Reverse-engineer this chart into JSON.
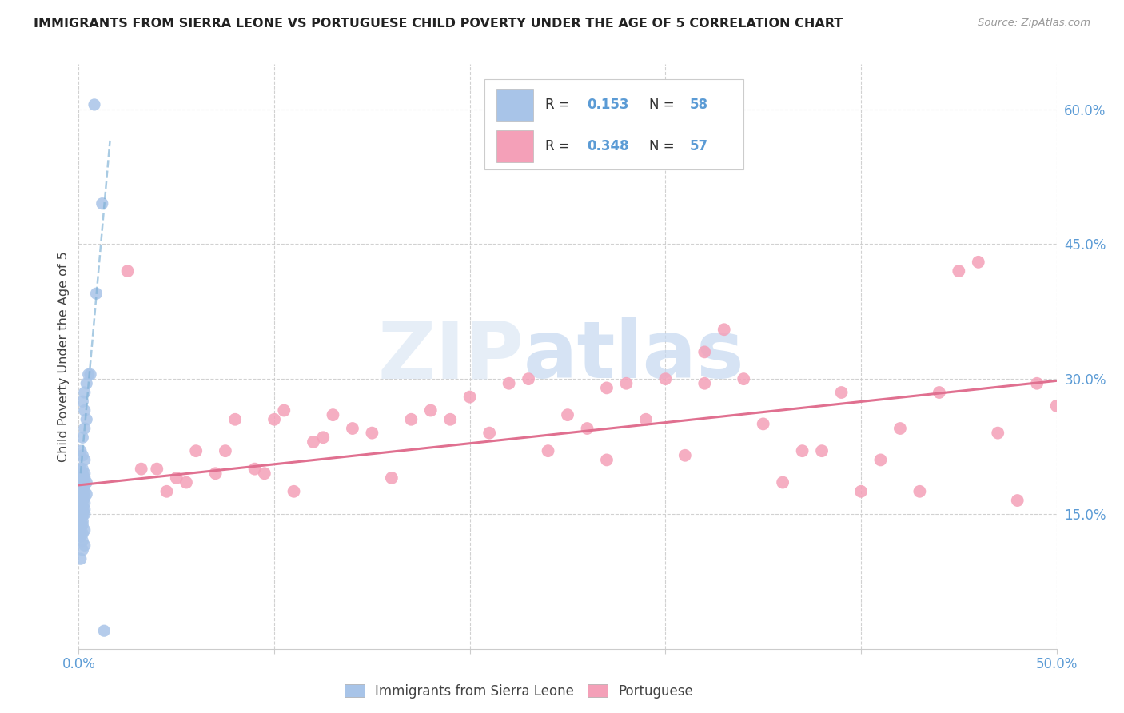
{
  "title": "IMMIGRANTS FROM SIERRA LEONE VS PORTUGUESE CHILD POVERTY UNDER THE AGE OF 5 CORRELATION CHART",
  "source": "Source: ZipAtlas.com",
  "ylabel": "Child Poverty Under the Age of 5",
  "ytick_labels": [
    "15.0%",
    "30.0%",
    "45.0%",
    "60.0%"
  ],
  "ytick_values": [
    0.15,
    0.3,
    0.45,
    0.6
  ],
  "xlim": [
    0.0,
    0.5
  ],
  "ylim": [
    0.0,
    0.65
  ],
  "legend_label1": "Immigrants from Sierra Leone",
  "legend_label2": "Portuguese",
  "R1": "0.153",
  "N1": "58",
  "R2": "0.348",
  "N2": "57",
  "color_blue": "#a8c4e8",
  "color_pink": "#f4a0b8",
  "color_blue_text": "#5b9bd5",
  "color_trendline_blue": "#7bafd4",
  "color_trendline_pink": "#e07090",
  "watermark_zip": "#dce8f5",
  "watermark_atlas": "#c5d8f0",
  "blue_scatter_x": [
    0.008,
    0.012,
    0.009,
    0.005,
    0.006,
    0.004,
    0.003,
    0.002,
    0.003,
    0.004,
    0.003,
    0.002,
    0.001,
    0.002,
    0.003,
    0.002,
    0.003,
    0.002,
    0.001,
    0.002,
    0.003,
    0.004,
    0.003,
    0.002,
    0.001,
    0.002,
    0.003,
    0.002,
    0.001,
    0.002,
    0.003,
    0.004,
    0.003,
    0.002,
    0.001,
    0.002,
    0.001,
    0.002,
    0.003,
    0.002,
    0.001,
    0.002,
    0.001,
    0.003,
    0.002,
    0.001,
    0.002,
    0.001,
    0.002,
    0.001,
    0.003,
    0.002,
    0.001,
    0.002,
    0.003,
    0.002,
    0.001,
    0.013
  ],
  "blue_scatter_y": [
    0.605,
    0.495,
    0.395,
    0.305,
    0.305,
    0.295,
    0.285,
    0.275,
    0.265,
    0.255,
    0.245,
    0.235,
    0.22,
    0.215,
    0.21,
    0.2,
    0.195,
    0.19,
    0.185,
    0.18,
    0.175,
    0.172,
    0.168,
    0.165,
    0.162,
    0.158,
    0.155,
    0.152,
    0.2,
    0.195,
    0.19,
    0.185,
    0.182,
    0.178,
    0.175,
    0.172,
    0.168,
    0.165,
    0.162,
    0.16,
    0.157,
    0.155,
    0.152,
    0.15,
    0.148,
    0.145,
    0.142,
    0.14,
    0.138,
    0.135,
    0.132,
    0.128,
    0.125,
    0.12,
    0.115,
    0.11,
    0.1,
    0.02
  ],
  "pink_scatter_x": [
    0.025,
    0.032,
    0.04,
    0.045,
    0.05,
    0.055,
    0.06,
    0.07,
    0.075,
    0.08,
    0.09,
    0.095,
    0.1,
    0.105,
    0.11,
    0.12,
    0.125,
    0.13,
    0.14,
    0.15,
    0.16,
    0.17,
    0.18,
    0.19,
    0.2,
    0.21,
    0.22,
    0.23,
    0.24,
    0.25,
    0.26,
    0.27,
    0.28,
    0.29,
    0.3,
    0.31,
    0.32,
    0.33,
    0.34,
    0.35,
    0.36,
    0.37,
    0.38,
    0.39,
    0.4,
    0.41,
    0.42,
    0.43,
    0.44,
    0.45,
    0.46,
    0.47,
    0.48,
    0.49,
    0.5,
    0.27,
    0.32
  ],
  "pink_scatter_y": [
    0.42,
    0.2,
    0.2,
    0.175,
    0.19,
    0.185,
    0.22,
    0.195,
    0.22,
    0.255,
    0.2,
    0.195,
    0.255,
    0.265,
    0.175,
    0.23,
    0.235,
    0.26,
    0.245,
    0.24,
    0.19,
    0.255,
    0.265,
    0.255,
    0.28,
    0.24,
    0.295,
    0.3,
    0.22,
    0.26,
    0.245,
    0.29,
    0.295,
    0.255,
    0.3,
    0.215,
    0.295,
    0.355,
    0.3,
    0.25,
    0.185,
    0.22,
    0.22,
    0.285,
    0.175,
    0.21,
    0.245,
    0.175,
    0.285,
    0.42,
    0.43,
    0.24,
    0.165,
    0.295,
    0.27,
    0.21,
    0.33
  ],
  "blue_trend_x": [
    0.001,
    0.016
  ],
  "blue_trend_y": [
    0.195,
    0.565
  ],
  "pink_trend_x": [
    0.0,
    0.5
  ],
  "pink_trend_y": [
    0.182,
    0.298
  ]
}
